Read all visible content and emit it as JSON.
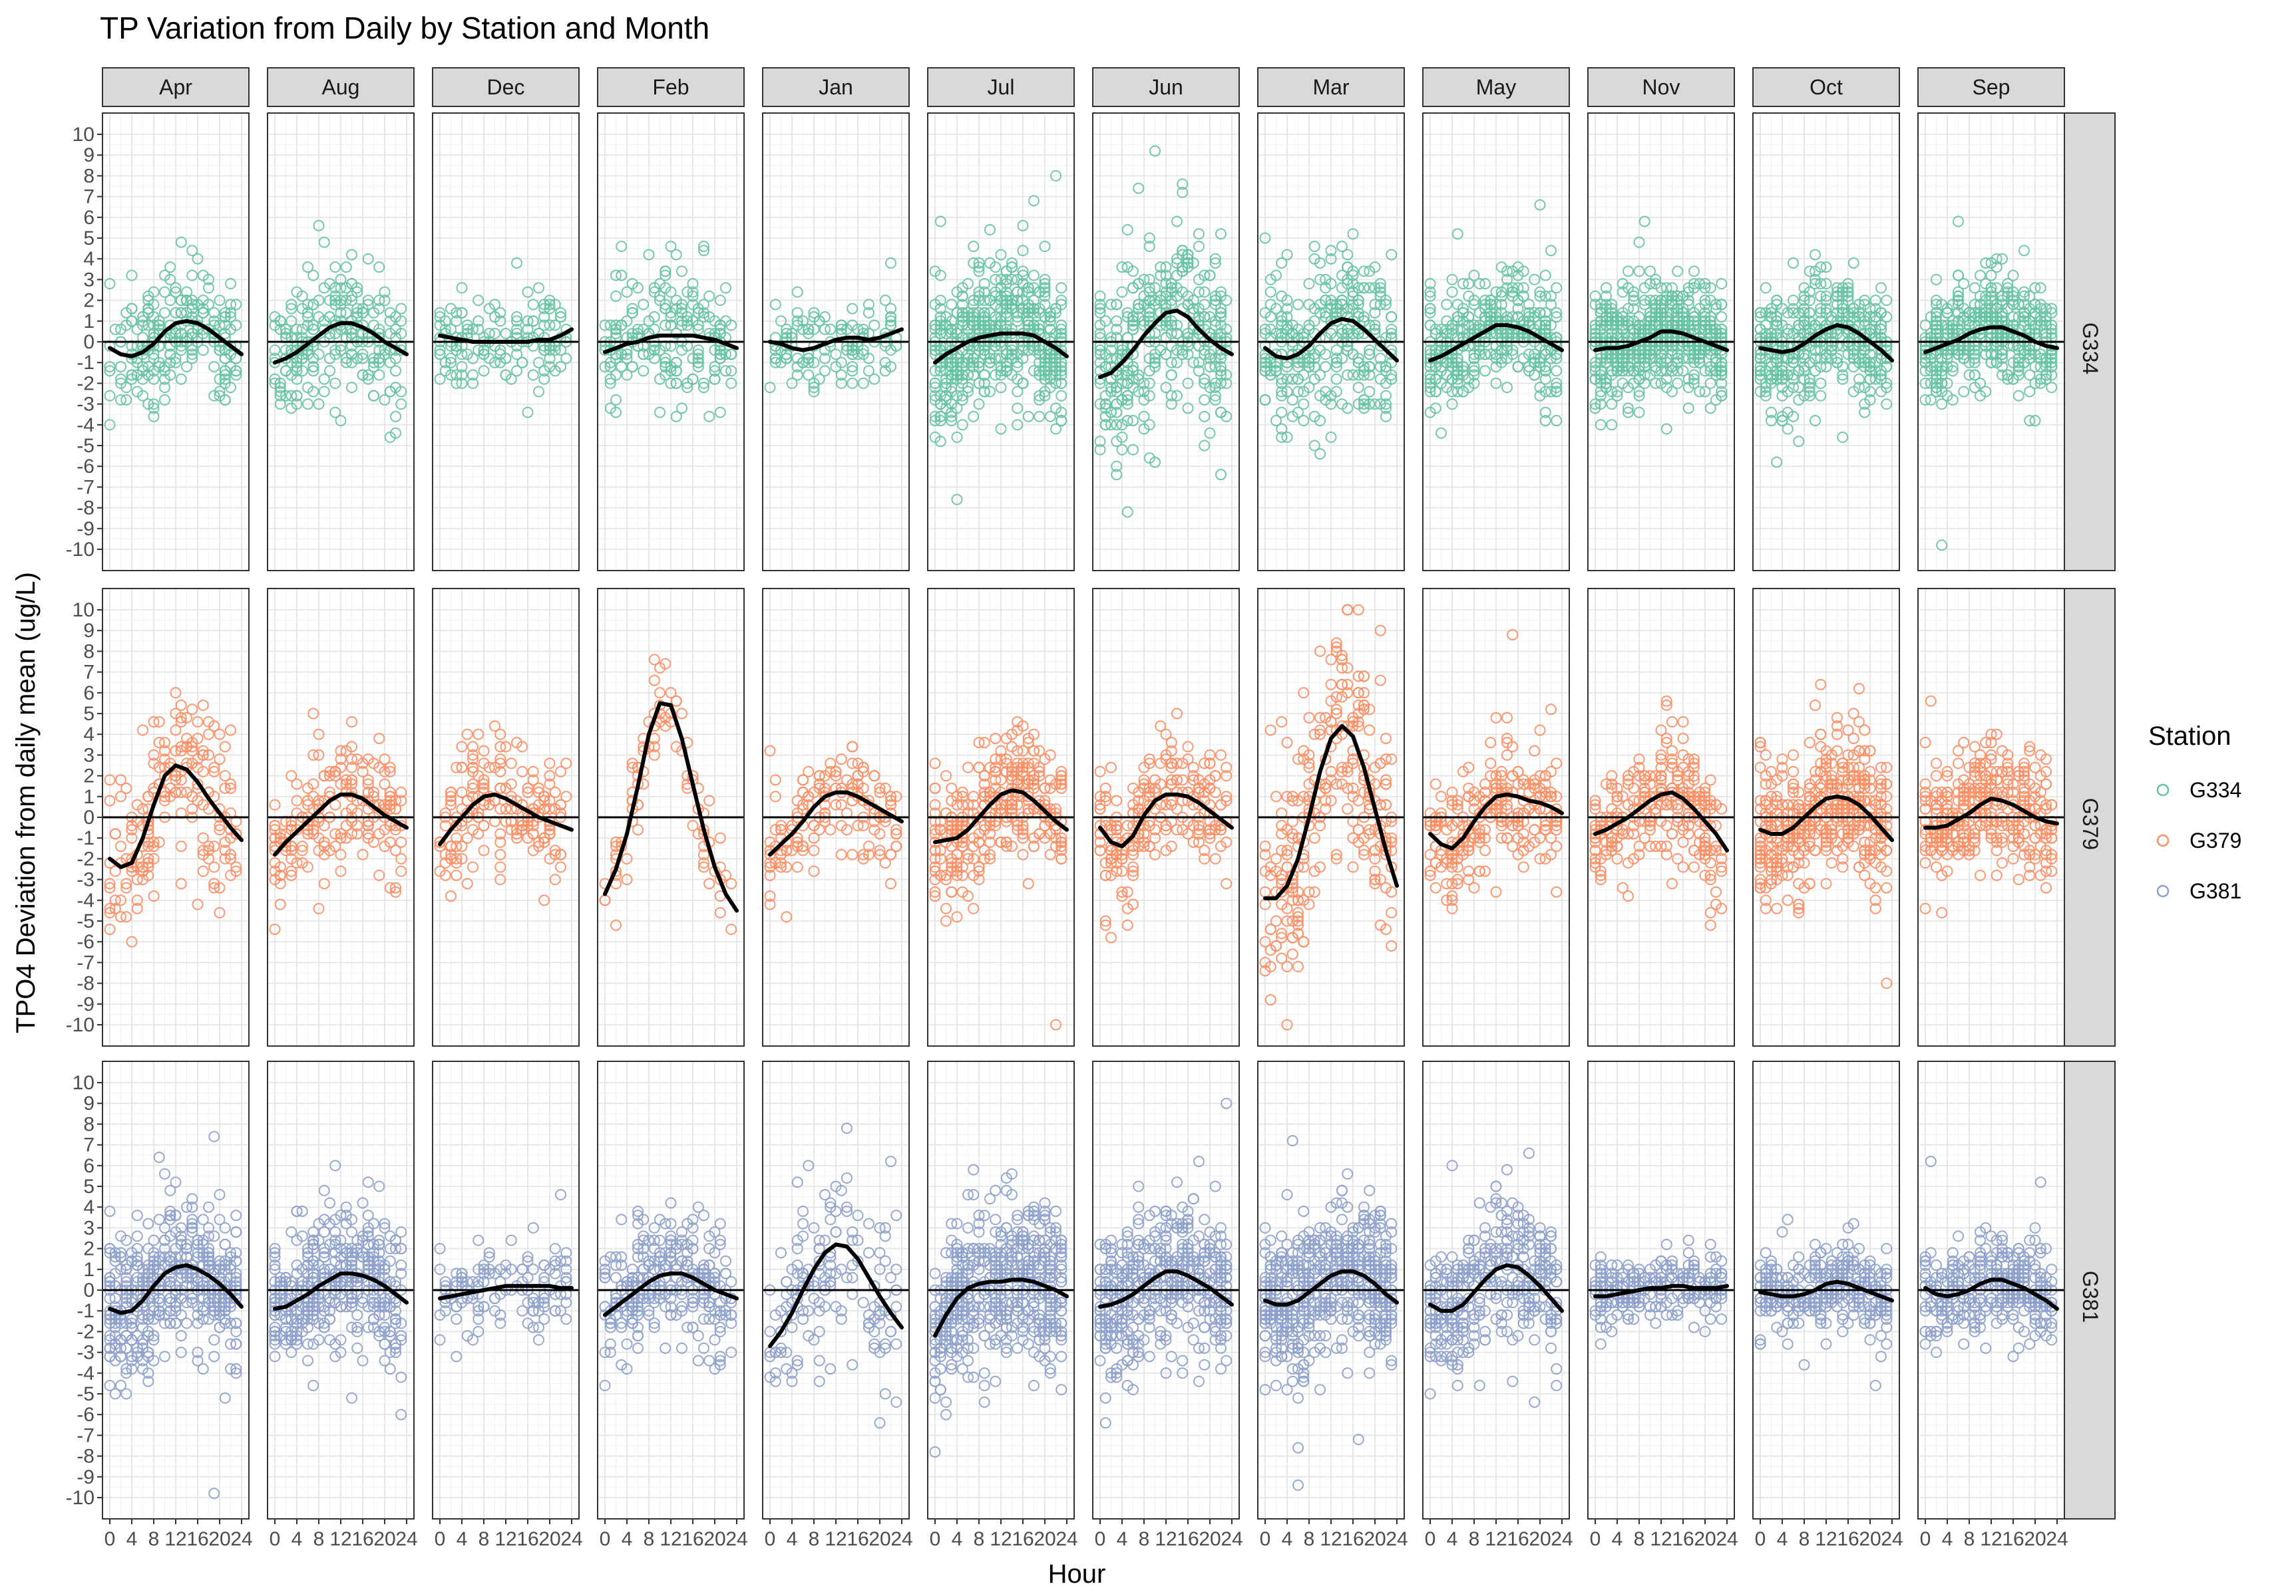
{
  "chart_data": {
    "type": "scatter",
    "title": "TP Variation from Daily by Station and Month",
    "xlabel": "Hour",
    "ylabel": "TPO4 Deviation from daily mean (ug/L)",
    "xlim": [
      0,
      24
    ],
    "ylim": [
      -10,
      10
    ],
    "x_ticks": [
      0,
      4,
      8,
      12,
      16,
      20,
      24
    ],
    "y_ticks": [
      -10,
      -9,
      -8,
      -7,
      -6,
      -5,
      -4,
      -3,
      -2,
      -1,
      0,
      1,
      2,
      3,
      4,
      5,
      6,
      7,
      8,
      9,
      10
    ],
    "grid": true,
    "facet_columns": [
      "Apr",
      "Aug",
      "Dec",
      "Feb",
      "Jan",
      "Jul",
      "Jun",
      "Mar",
      "May",
      "Nov",
      "Oct",
      "Sep"
    ],
    "facet_rows": [
      "G334",
      "G379",
      "G381"
    ],
    "reference_line_y": 0,
    "legend": {
      "title": "Station",
      "placement": "right",
      "entries": [
        {
          "label": "G334",
          "color": "#66c2a5"
        },
        {
          "label": "G379",
          "color": "#fc8d62"
        },
        {
          "label": "G381",
          "color": "#8da0cb"
        }
      ]
    },
    "smooth_color": "#000000",
    "smooth_x": [
      0,
      2,
      4,
      6,
      8,
      10,
      12,
      14,
      16,
      18,
      20,
      22,
      24
    ],
    "smooth": {
      "G334": {
        "Apr": [
          -0.3,
          -0.6,
          -0.7,
          -0.5,
          -0.1,
          0.5,
          0.9,
          1.0,
          0.9,
          0.6,
          0.2,
          -0.2,
          -0.6
        ],
        "Aug": [
          -1.0,
          -0.8,
          -0.5,
          -0.1,
          0.3,
          0.7,
          0.9,
          0.9,
          0.7,
          0.4,
          0.0,
          -0.3,
          -0.6
        ],
        "Dec": [
          0.3,
          0.2,
          0.1,
          0.0,
          0.0,
          0.0,
          0.0,
          0.0,
          0.0,
          0.1,
          0.1,
          0.3,
          0.6
        ],
        "Feb": [
          -0.5,
          -0.3,
          -0.1,
          0.0,
          0.2,
          0.3,
          0.3,
          0.3,
          0.3,
          0.2,
          0.1,
          -0.1,
          -0.3
        ],
        "Jan": [
          0.0,
          -0.1,
          -0.3,
          -0.4,
          -0.3,
          -0.1,
          0.1,
          0.2,
          0.2,
          0.1,
          0.2,
          0.4,
          0.6
        ],
        "Jul": [
          -1.0,
          -0.6,
          -0.3,
          0.0,
          0.2,
          0.3,
          0.4,
          0.4,
          0.4,
          0.3,
          0.0,
          -0.3,
          -0.7
        ],
        "Jun": [
          -1.7,
          -1.5,
          -1.0,
          -0.4,
          0.3,
          0.9,
          1.4,
          1.5,
          1.2,
          0.6,
          0.1,
          -0.3,
          -0.6
        ],
        "Mar": [
          -0.3,
          -0.7,
          -0.8,
          -0.6,
          -0.2,
          0.4,
          0.9,
          1.1,
          1.0,
          0.6,
          0.1,
          -0.4,
          -0.9
        ],
        "May": [
          -0.9,
          -0.7,
          -0.4,
          -0.1,
          0.2,
          0.5,
          0.8,
          0.8,
          0.7,
          0.5,
          0.2,
          -0.1,
          -0.4
        ],
        "Nov": [
          -0.4,
          -0.3,
          -0.3,
          -0.2,
          0.0,
          0.2,
          0.5,
          0.5,
          0.4,
          0.2,
          0.0,
          -0.2,
          -0.4
        ],
        "Oct": [
          -0.3,
          -0.4,
          -0.5,
          -0.4,
          -0.1,
          0.3,
          0.6,
          0.8,
          0.7,
          0.4,
          0.0,
          -0.4,
          -0.9
        ],
        "Sep": [
          -0.5,
          -0.3,
          -0.1,
          0.1,
          0.4,
          0.6,
          0.7,
          0.7,
          0.5,
          0.3,
          0.0,
          -0.2,
          -0.3
        ]
      },
      "G379": {
        "Apr": [
          -2.0,
          -2.4,
          -2.2,
          -1.0,
          0.6,
          2.0,
          2.5,
          2.3,
          1.7,
          0.9,
          0.2,
          -0.5,
          -1.1
        ],
        "Aug": [
          -1.8,
          -1.2,
          -0.7,
          -0.2,
          0.3,
          0.8,
          1.1,
          1.1,
          0.9,
          0.5,
          0.1,
          -0.2,
          -0.5
        ],
        "Dec": [
          -1.3,
          -0.6,
          0.0,
          0.6,
          1.0,
          1.1,
          0.9,
          0.6,
          0.3,
          0.0,
          -0.2,
          -0.4,
          -0.6
        ],
        "Feb": [
          -3.7,
          -2.5,
          -0.8,
          1.5,
          4.0,
          5.5,
          5.4,
          3.8,
          1.6,
          -0.6,
          -2.4,
          -3.7,
          -4.5
        ],
        "Jan": [
          -1.8,
          -1.3,
          -0.8,
          -0.2,
          0.5,
          1.0,
          1.2,
          1.2,
          1.0,
          0.7,
          0.4,
          0.1,
          -0.2
        ],
        "Jul": [
          -1.2,
          -1.1,
          -1.0,
          -0.6,
          0.0,
          0.6,
          1.1,
          1.3,
          1.2,
          0.8,
          0.3,
          -0.2,
          -0.6
        ],
        "Jun": [
          -0.5,
          -1.2,
          -1.4,
          -0.9,
          0.1,
          0.8,
          1.1,
          1.1,
          1.0,
          0.7,
          0.3,
          -0.1,
          -0.5
        ],
        "Mar": [
          -3.9,
          -3.9,
          -3.3,
          -2.0,
          0.0,
          2.2,
          3.8,
          4.4,
          3.9,
          2.4,
          0.4,
          -1.6,
          -3.3
        ],
        "May": [
          -0.8,
          -1.3,
          -1.5,
          -1.0,
          -0.2,
          0.5,
          1.0,
          1.1,
          1.0,
          0.8,
          0.7,
          0.5,
          0.2
        ],
        "Nov": [
          -0.8,
          -0.6,
          -0.3,
          0.0,
          0.4,
          0.8,
          1.1,
          1.2,
          0.9,
          0.4,
          -0.2,
          -0.8,
          -1.6
        ],
        "Oct": [
          -0.6,
          -0.8,
          -0.8,
          -0.5,
          0.0,
          0.5,
          0.9,
          1.0,
          0.9,
          0.6,
          0.1,
          -0.5,
          -1.1
        ],
        "Sep": [
          -0.5,
          -0.5,
          -0.4,
          -0.1,
          0.2,
          0.6,
          0.9,
          0.8,
          0.6,
          0.3,
          0.0,
          -0.2,
          -0.3
        ]
      },
      "G381": {
        "Apr": [
          -0.9,
          -1.1,
          -1.0,
          -0.5,
          0.2,
          0.8,
          1.1,
          1.2,
          1.0,
          0.7,
          0.3,
          -0.2,
          -0.8
        ],
        "Aug": [
          -0.9,
          -0.8,
          -0.5,
          -0.2,
          0.2,
          0.5,
          0.8,
          0.8,
          0.7,
          0.5,
          0.2,
          -0.2,
          -0.6
        ],
        "Dec": [
          -0.4,
          -0.3,
          -0.2,
          -0.1,
          0.0,
          0.1,
          0.2,
          0.2,
          0.2,
          0.2,
          0.2,
          0.1,
          0.1
        ],
        "Feb": [
          -1.2,
          -0.8,
          -0.4,
          0.0,
          0.4,
          0.7,
          0.8,
          0.8,
          0.6,
          0.3,
          0.0,
          -0.2,
          -0.4
        ],
        "Jan": [
          -2.7,
          -2.0,
          -1.1,
          0.0,
          1.0,
          1.8,
          2.2,
          2.1,
          1.5,
          0.6,
          -0.3,
          -1.1,
          -1.8
        ],
        "Jul": [
          -2.2,
          -1.2,
          -0.4,
          0.1,
          0.3,
          0.4,
          0.4,
          0.5,
          0.5,
          0.4,
          0.2,
          0.0,
          -0.3
        ],
        "Jun": [
          -0.8,
          -0.7,
          -0.5,
          -0.2,
          0.2,
          0.6,
          0.9,
          0.9,
          0.7,
          0.4,
          0.1,
          -0.3,
          -0.7
        ],
        "Mar": [
          -0.5,
          -0.7,
          -0.7,
          -0.5,
          -0.1,
          0.3,
          0.7,
          0.9,
          0.9,
          0.7,
          0.3,
          -0.2,
          -0.6
        ],
        "May": [
          -0.7,
          -1.0,
          -1.0,
          -0.7,
          -0.1,
          0.5,
          1.0,
          1.2,
          1.1,
          0.7,
          0.2,
          -0.4,
          -1.0
        ],
        "Nov": [
          -0.3,
          -0.3,
          -0.2,
          -0.1,
          0.0,
          0.1,
          0.1,
          0.2,
          0.2,
          0.1,
          0.1,
          0.1,
          0.2
        ],
        "Oct": [
          -0.1,
          -0.2,
          -0.3,
          -0.3,
          -0.2,
          0.0,
          0.3,
          0.4,
          0.3,
          0.1,
          -0.1,
          -0.3,
          -0.5
        ],
        "Sep": [
          0.1,
          -0.2,
          -0.3,
          -0.2,
          0.0,
          0.3,
          0.5,
          0.5,
          0.3,
          0.1,
          -0.2,
          -0.5,
          -0.9
        ]
      }
    },
    "points_spread": {
      "G334": {
        "Apr": {
          "sd": 1.6,
          "n": 230
        },
        "Aug": {
          "sd": 1.8,
          "n": 240
        },
        "Dec": {
          "sd": 1.4,
          "n": 150
        },
        "Feb": {
          "sd": 1.6,
          "n": 200
        },
        "Jan": {
          "sd": 1.3,
          "n": 130
        },
        "Jul": {
          "sd": 2.0,
          "n": 520
        },
        "Jun": {
          "sd": 2.6,
          "n": 360
        },
        "Mar": {
          "sd": 2.2,
          "n": 300
        },
        "May": {
          "sd": 1.6,
          "n": 380
        },
        "Nov": {
          "sd": 1.5,
          "n": 560
        },
        "Oct": {
          "sd": 1.6,
          "n": 420
        },
        "Sep": {
          "sd": 1.5,
          "n": 440
        }
      },
      "G379": {
        "Apr": {
          "sd": 2.3,
          "n": 200
        },
        "Aug": {
          "sd": 1.7,
          "n": 200
        },
        "Dec": {
          "sd": 1.5,
          "n": 200
        },
        "Feb": {
          "sd": 1.2,
          "n": 90
        },
        "Jan": {
          "sd": 1.6,
          "n": 160
        },
        "Jul": {
          "sd": 1.8,
          "n": 320
        },
        "Jun": {
          "sd": 1.8,
          "n": 220
        },
        "Mar": {
          "sd": 3.0,
          "n": 280
        },
        "May": {
          "sd": 1.6,
          "n": 250
        },
        "Nov": {
          "sd": 1.7,
          "n": 260
        },
        "Oct": {
          "sd": 1.9,
          "n": 440
        },
        "Sep": {
          "sd": 1.7,
          "n": 330
        }
      },
      "G381": {
        "Apr": {
          "sd": 2.0,
          "n": 460
        },
        "Aug": {
          "sd": 1.9,
          "n": 420
        },
        "Dec": {
          "sd": 1.2,
          "n": 130
        },
        "Feb": {
          "sd": 1.7,
          "n": 300
        },
        "Jan": {
          "sd": 2.4,
          "n": 160
        },
        "Jul": {
          "sd": 2.1,
          "n": 520
        },
        "Jun": {
          "sd": 2.0,
          "n": 480
        },
        "Mar": {
          "sd": 2.0,
          "n": 520
        },
        "May": {
          "sd": 1.9,
          "n": 360
        },
        "Nov": {
          "sd": 0.9,
          "n": 240
        },
        "Oct": {
          "sd": 1.2,
          "n": 320
        },
        "Sep": {
          "sd": 1.4,
          "n": 340
        }
      }
    }
  }
}
